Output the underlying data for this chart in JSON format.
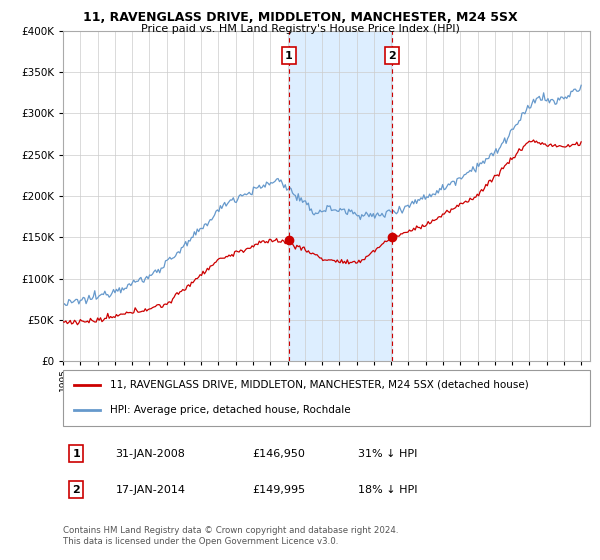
{
  "title": "11, RAVENGLASS DRIVE, MIDDLETON, MANCHESTER, M24 5SX",
  "subtitle": "Price paid vs. HM Land Registry's House Price Index (HPI)",
  "red_label": "11, RAVENGLASS DRIVE, MIDDLETON, MANCHESTER, M24 5SX (detached house)",
  "blue_label": "HPI: Average price, detached house, Rochdale",
  "annotation1": {
    "num": "1",
    "date": "31-JAN-2008",
    "price": "£146,950",
    "note": "31% ↓ HPI"
  },
  "annotation2": {
    "num": "2",
    "date": "17-JAN-2014",
    "price": "£149,995",
    "note": "18% ↓ HPI"
  },
  "footer": "Contains HM Land Registry data © Crown copyright and database right 2024.\nThis data is licensed under the Open Government Licence v3.0.",
  "marker1_year": 2008.08,
  "marker2_year": 2014.05,
  "red_color": "#cc0000",
  "blue_color": "#6699cc",
  "shaded_color": "#ddeeff",
  "ylim_min": 0,
  "ylim_max": 400000,
  "xmin": 1995.0,
  "xmax": 2025.5,
  "sale1_price": 146950,
  "sale2_price": 149995
}
